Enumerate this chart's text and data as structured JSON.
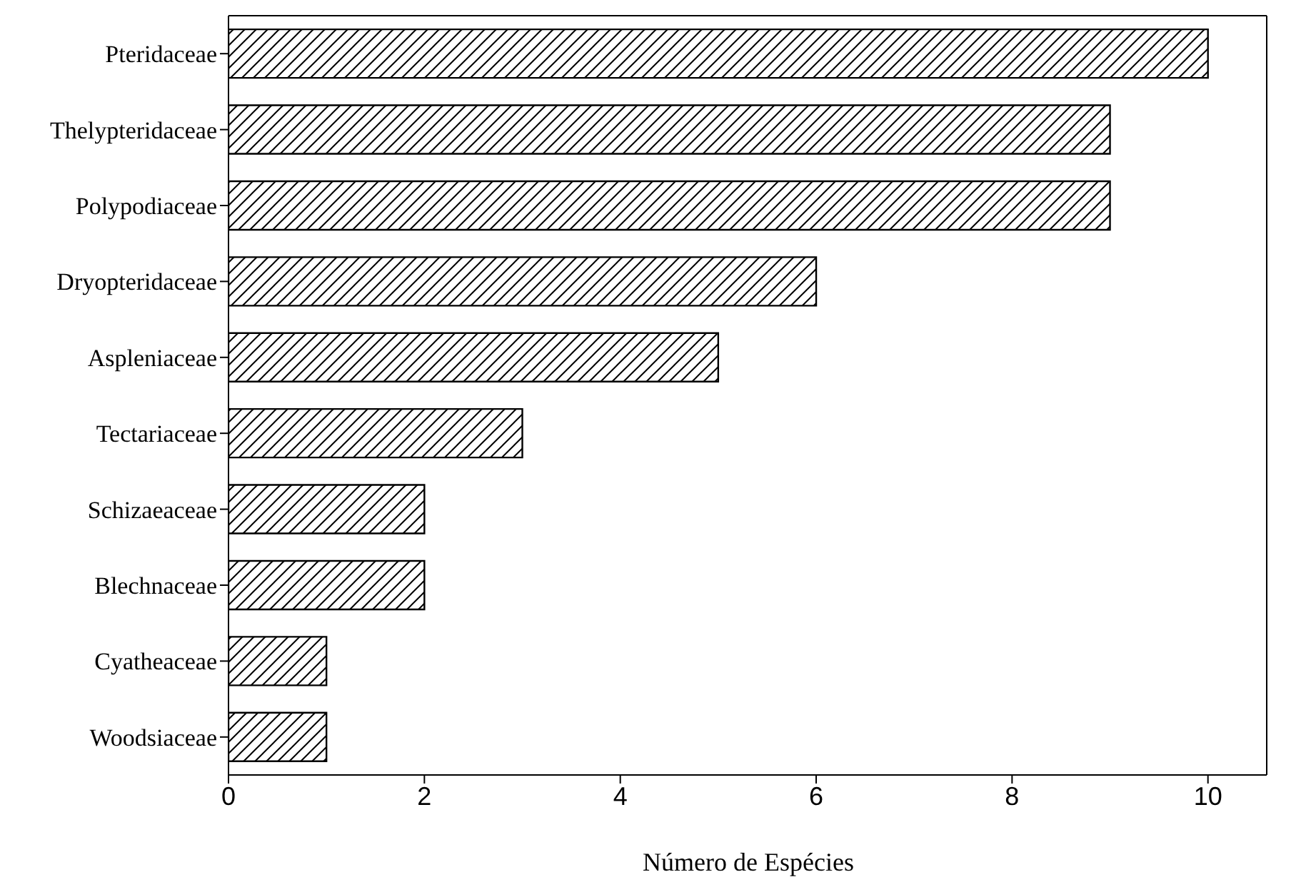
{
  "chart_data": {
    "type": "bar",
    "orientation": "horizontal",
    "xlabel": "Número de Espécies",
    "categories": [
      "Pteridaceae",
      "Thelypteridaceae",
      "Polypodiaceae",
      "Dryopteridaceae",
      "Aspleniaceae",
      "Tectariaceae",
      "Schizaeaceae",
      "Blechnaceae",
      "Cyatheaceae",
      "Woodsiaceae"
    ],
    "values": [
      10,
      9,
      9,
      6,
      5,
      3,
      2,
      2,
      1,
      1
    ],
    "color": "#000000",
    "xlim": [
      0,
      10.6
    ],
    "xticks": [
      0,
      2,
      4,
      6,
      8,
      10
    ]
  }
}
